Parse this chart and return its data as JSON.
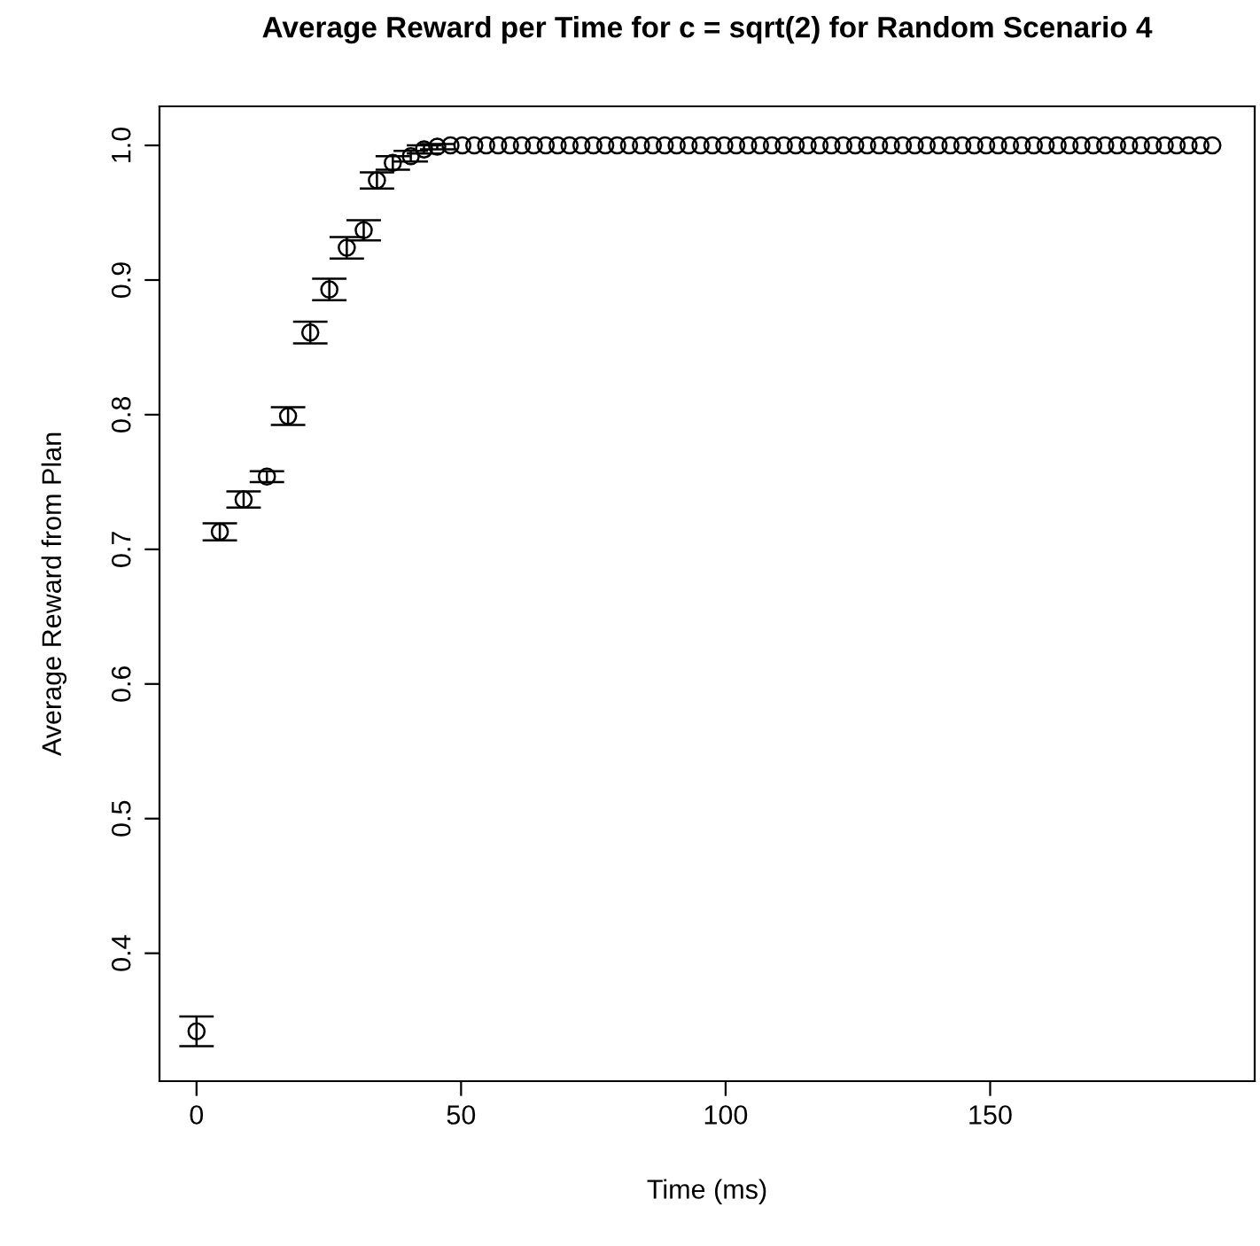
{
  "chart_data": {
    "type": "scatter",
    "title": "Average Reward per Time for c = sqrt(2) for Random Scenario 4",
    "xlabel": "Time (ms)",
    "ylabel": "Average Reward from Plan",
    "x": [
      0,
      4.4,
      8.9,
      13.3,
      17.3,
      21.5,
      25.1,
      28.4,
      31.6,
      34.1,
      37.1,
      40.5,
      43,
      45.5,
      48,
      50.25,
      52.5,
      54.75,
      57,
      59.25,
      61.5,
      63.75,
      66,
      68.25,
      70.5,
      72.75,
      75,
      77.25,
      79.5,
      81.75,
      84,
      86.25,
      88.5,
      90.75,
      93,
      95.25,
      97.5,
      99.75,
      102,
      104.25,
      106.5,
      108.75,
      111,
      113.25,
      115.5,
      117.75,
      120,
      122.25,
      124.5,
      126.75,
      129,
      131.25,
      133.5,
      135.75,
      138,
      140.25,
      142.5,
      144.75,
      147,
      149.25,
      151.5,
      153.75,
      156,
      158.25,
      160.5,
      162.75,
      165,
      167.25,
      169.5,
      171.75,
      174,
      176.25,
      178.5,
      180.75,
      183,
      185.25,
      187.5,
      189.75,
      192
    ],
    "values": [
      0.342,
      0.713,
      0.737,
      0.754,
      0.799,
      0.861,
      0.893,
      0.924,
      0.937,
      0.974,
      0.987,
      0.992,
      0.997,
      0.999,
      1,
      1,
      1,
      1,
      1,
      1,
      1,
      1,
      1,
      1,
      1,
      1,
      1,
      1,
      1,
      1,
      1,
      1,
      1,
      1,
      1,
      1,
      1,
      1,
      1,
      1,
      1,
      1,
      1,
      1,
      1,
      1,
      1,
      1,
      1,
      1,
      1,
      1,
      1,
      1,
      1,
      1,
      1,
      1,
      1,
      1,
      1,
      1,
      1,
      1,
      1,
      1,
      1,
      1,
      1,
      1,
      1,
      1,
      1,
      1,
      1,
      1,
      1,
      1,
      1
    ],
    "errors": [
      0.011,
      0.0064,
      0.006,
      0.004,
      0.0066,
      0.008,
      0.008,
      0.008,
      0.0075,
      0.006,
      0.005,
      0.004,
      0.003,
      0.002,
      null,
      null,
      null,
      null,
      null,
      null,
      null,
      null,
      null,
      null,
      null,
      null,
      null,
      null,
      null,
      null,
      null,
      null,
      null,
      null,
      null,
      null,
      null,
      null,
      null,
      null,
      null,
      null,
      null,
      null,
      null,
      null,
      null,
      null,
      null,
      null,
      null,
      null,
      null,
      null,
      null,
      null,
      null,
      null,
      null,
      null,
      null,
      null,
      null,
      null,
      null,
      null,
      null,
      null,
      null,
      null,
      null,
      null,
      null,
      null,
      null,
      null,
      null,
      null,
      null
    ],
    "color": "#000000",
    "marker": "circle",
    "xlim": [
      -7,
      200
    ],
    "ylim": [
      0.305,
      1.029
    ],
    "xticks": [
      0,
      50,
      100,
      150
    ],
    "yticks": [
      0.4,
      0.5,
      0.6,
      0.7,
      0.8,
      0.9,
      {
        "value": 1,
        "label": "1.0"
      }
    ],
    "grid": false
  }
}
